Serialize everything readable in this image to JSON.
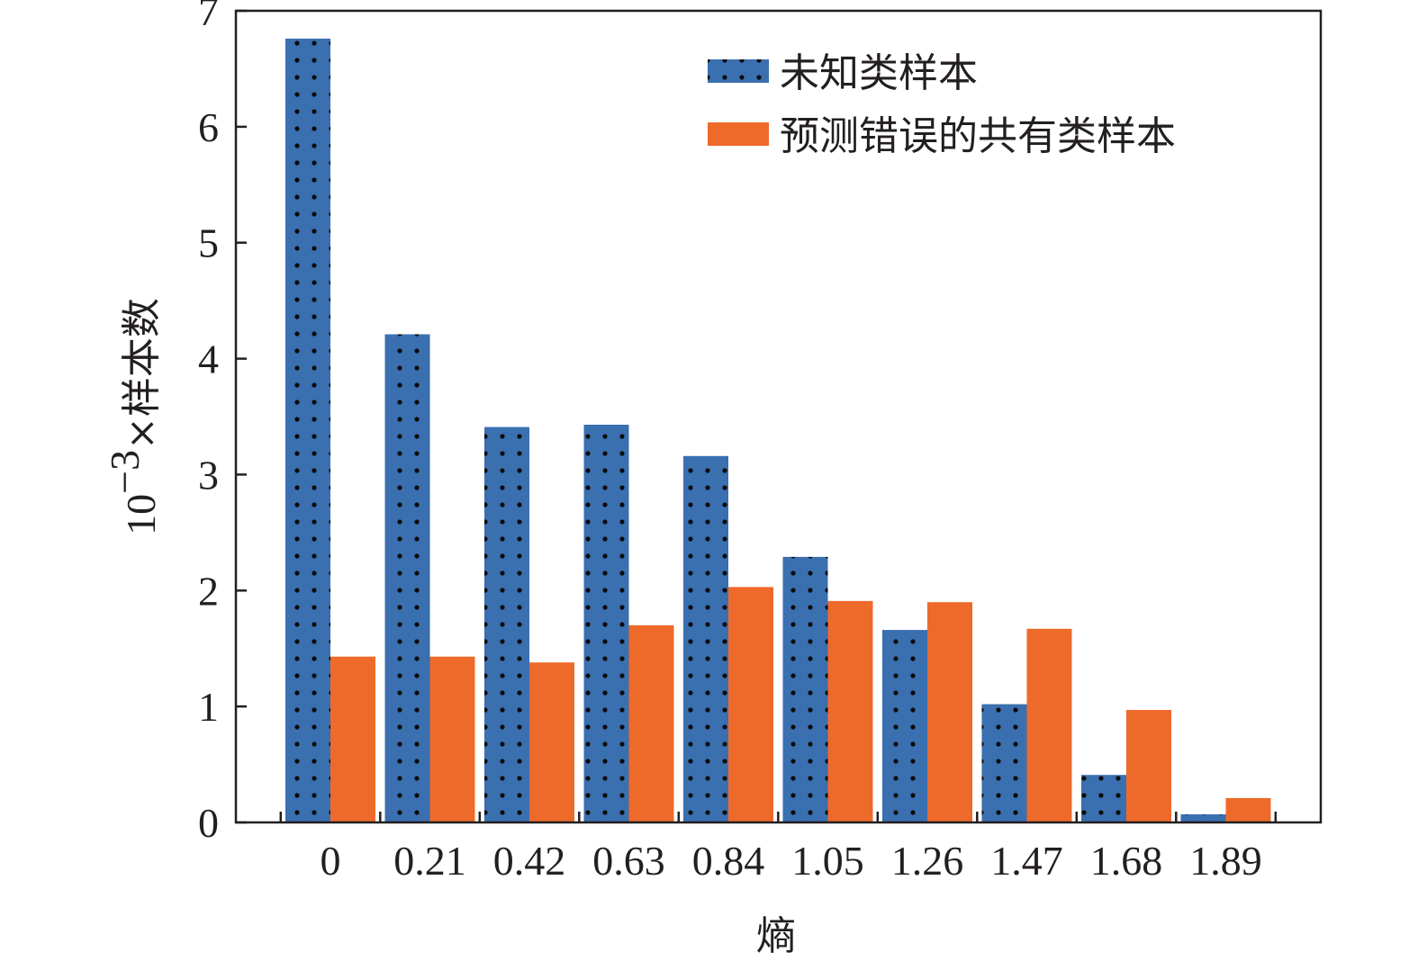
{
  "chart_data": {
    "type": "bar",
    "categories": [
      "0",
      "0.21",
      "0.42",
      "0.63",
      "0.84",
      "1.05",
      "1.26",
      "1.47",
      "1.68",
      "1.89"
    ],
    "series": [
      {
        "name": "未知类样本",
        "color": "#3a6fb0",
        "pattern": "dots",
        "values": [
          6.76,
          4.21,
          3.41,
          3.43,
          3.16,
          2.29,
          1.66,
          1.02,
          0.41,
          0.07
        ]
      },
      {
        "name": "预测错误的共有类样本",
        "color": "#ee6a2a",
        "pattern": "solid",
        "values": [
          1.43,
          1.43,
          1.38,
          1.7,
          2.03,
          1.91,
          1.9,
          1.67,
          0.97,
          0.21
        ]
      }
    ],
    "xlabel": "熵",
    "ylabel": {
      "base": "10",
      "exponent": "−3",
      "rest": "×样本数"
    },
    "ylim": [
      0,
      7
    ],
    "yticks": [
      "0",
      "1",
      "2",
      "3",
      "4",
      "5",
      "6",
      "7"
    ],
    "legend_position": "top-right",
    "grid": false
  }
}
